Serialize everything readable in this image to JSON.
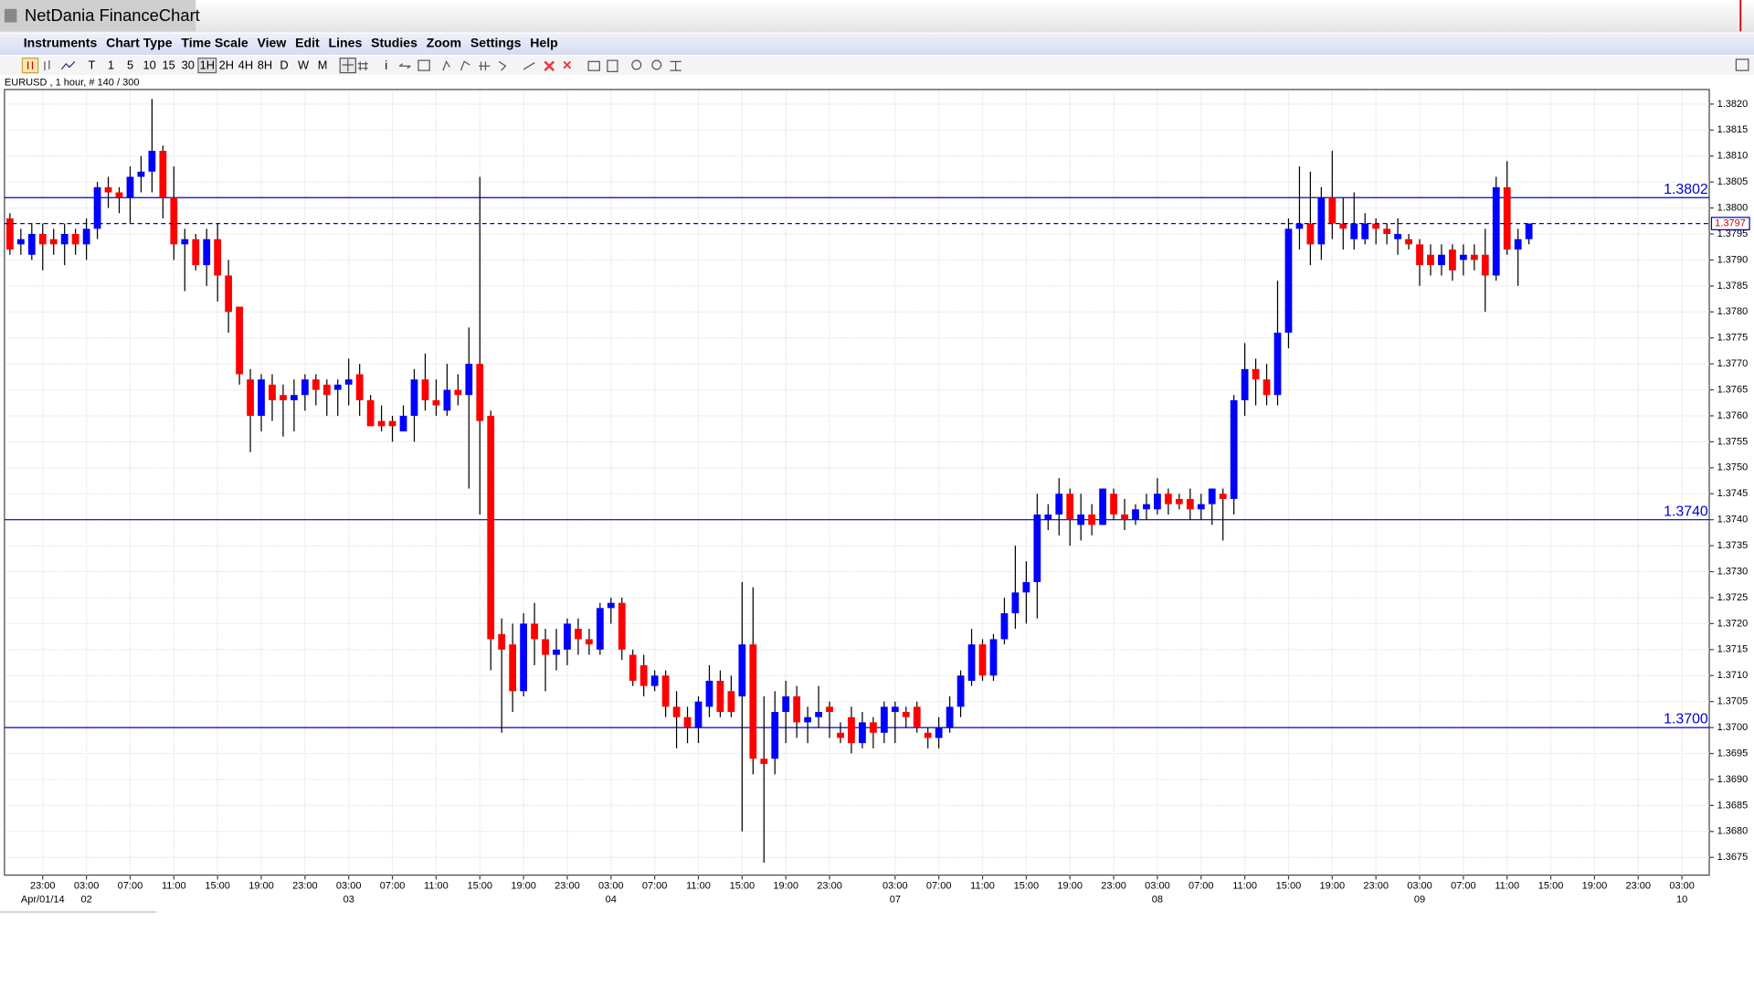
{
  "window": {
    "title": "NetDania FinanceChart"
  },
  "menu": [
    "Instruments",
    "Chart Type",
    "Time Scale",
    "View",
    "Edit",
    "Lines",
    "Studies",
    "Zoom",
    "Settings",
    "Help"
  ],
  "toolbar": [
    "T",
    "1",
    "5",
    "10",
    "15",
    "30",
    "1H",
    "2H",
    "4H",
    "8H",
    "D",
    "W",
    "M"
  ],
  "info": "EURUSD , 1 hour, # 140 / 300",
  "chart_data": {
    "type": "candlestick",
    "up_color": "#0000ff",
    "down_color": "#ff0000",
    "level_color": "#0000cc",
    "grid": true,
    "open": [
      1.3798,
      1.3793,
      1.3791,
      1.3795,
      1.3794,
      1.3793,
      1.3795,
      1.3793,
      1.3796,
      1.3804,
      1.3803,
      1.3802,
      1.3806,
      1.3807,
      1.3811,
      1.3802,
      1.3793,
      1.3794,
      1.3789,
      1.3794,
      1.3787,
      1.3781,
      1.3767,
      1.376,
      1.3766,
      1.3764,
      1.3763,
      1.3764,
      1.3767,
      1.3766,
      1.3765,
      1.3766,
      1.3768,
      1.3763,
      1.3759,
      1.3759,
      1.3757,
      1.376,
      1.3767,
      1.3763,
      1.3761,
      1.3765,
      1.3764,
      1.377,
      1.376,
      1.3718,
      1.3716,
      1.3707,
      1.372,
      1.3717,
      1.3714,
      1.3715,
      1.3719,
      1.3717,
      1.3715,
      1.3723,
      1.3724,
      1.3714,
      1.3712,
      1.3708,
      1.371,
      1.3704,
      1.3702,
      1.37,
      1.3704,
      1.3709,
      1.3707,
      1.3706,
      1.3716,
      1.3694,
      1.3694,
      1.3703,
      1.3706,
      1.3701,
      1.3702,
      1.3704,
      1.3699,
      1.3702,
      1.3697,
      1.3701,
      1.3699,
      1.3703,
      1.3703,
      1.3704,
      1.3699,
      1.3698,
      1.37,
      1.3704,
      1.3709,
      1.3716,
      1.371,
      1.3717,
      1.3722,
      1.3726,
      1.3728,
      1.374,
      1.3741,
      1.3745,
      1.3739,
      1.3741,
      1.3739,
      1.3745,
      1.3741,
      1.374,
      1.3742,
      1.3742,
      1.3745,
      1.3744,
      1.3744,
      1.3742,
      1.3743,
      1.3745,
      1.3744,
      1.3763,
      1.3769,
      1.3767,
      1.3764,
      1.3776,
      1.3796,
      1.3797,
      1.3793,
      1.3802,
      1.3797,
      1.3794,
      1.3794,
      1.3797,
      1.3796,
      1.3794,
      1.3794,
      1.3793,
      1.3791,
      1.3789,
      1.3792,
      1.379,
      1.3791,
      1.3791,
      1.3787,
      1.3804,
      1.3792,
      1.3794
    ],
    "high": [
      1.3799,
      1.3796,
      1.3797,
      1.3797,
      1.3796,
      1.3797,
      1.3796,
      1.3798,
      1.3805,
      1.3806,
      1.3804,
      1.3808,
      1.381,
      1.3821,
      1.3812,
      1.3808,
      1.3796,
      1.3795,
      1.3796,
      1.3797,
      1.379,
      1.3781,
      1.3769,
      1.3768,
      1.3768,
      1.3766,
      1.3767,
      1.3768,
      1.3768,
      1.3767,
      1.3767,
      1.3771,
      1.377,
      1.3764,
      1.3762,
      1.376,
      1.3762,
      1.3769,
      1.3772,
      1.3767,
      1.377,
      1.3768,
      1.3777,
      1.3806,
      1.3761,
      1.3721,
      1.372,
      1.3722,
      1.3724,
      1.3719,
      1.3719,
      1.3721,
      1.3721,
      1.3719,
      1.3724,
      1.3725,
      1.3725,
      1.3715,
      1.3714,
      1.3711,
      1.3711,
      1.3707,
      1.3704,
      1.3706,
      1.3712,
      1.3711,
      1.371,
      1.3728,
      1.3727,
      1.3706,
      1.3707,
      1.3709,
      1.3708,
      1.3704,
      1.3708,
      1.3705,
      1.3701,
      1.3704,
      1.3703,
      1.3702,
      1.3705,
      1.3705,
      1.3704,
      1.3705,
      1.37,
      1.3702,
      1.3706,
      1.3711,
      1.3719,
      1.3717,
      1.3718,
      1.3725,
      1.3735,
      1.3732,
      1.3745,
      1.3743,
      1.3748,
      1.3746,
      1.3745,
      1.3743,
      1.3746,
      1.3746,
      1.3744,
      1.3743,
      1.3745,
      1.3748,
      1.3746,
      1.3745,
      1.3746,
      1.3745,
      1.3746,
      1.3746,
      1.3764,
      1.3774,
      1.3771,
      1.377,
      1.3786,
      1.3798,
      1.3808,
      1.3807,
      1.3804,
      1.3811,
      1.3802,
      1.3803,
      1.3799,
      1.3798,
      1.3797,
      1.3798,
      1.3795,
      1.3794,
      1.3793,
      1.3793,
      1.3793,
      1.3793,
      1.3793,
      1.3796,
      1.3806,
      1.3809,
      1.3796,
      1.3797
    ],
    "low": [
      1.3791,
      1.3791,
      1.379,
      1.3788,
      1.3791,
      1.3789,
      1.3791,
      1.379,
      1.3794,
      1.38,
      1.3799,
      1.3797,
      1.3803,
      1.3803,
      1.3798,
      1.379,
      1.3784,
      1.3788,
      1.3785,
      1.3782,
      1.3776,
      1.3766,
      1.3753,
      1.3757,
      1.3759,
      1.3756,
      1.3757,
      1.3761,
      1.3762,
      1.376,
      1.376,
      1.3762,
      1.376,
      1.3758,
      1.3757,
      1.3755,
      1.3757,
      1.3755,
      1.3761,
      1.376,
      1.376,
      1.3762,
      1.3746,
      1.3741,
      1.3711,
      1.3699,
      1.3703,
      1.3706,
      1.3712,
      1.3707,
      1.3711,
      1.3712,
      1.3714,
      1.3714,
      1.3714,
      1.372,
      1.3713,
      1.3708,
      1.3706,
      1.3707,
      1.3702,
      1.3696,
      1.3697,
      1.3697,
      1.3702,
      1.3702,
      1.3702,
      1.368,
      1.3691,
      1.3674,
      1.3691,
      1.3697,
      1.3698,
      1.3697,
      1.37,
      1.3698,
      1.3697,
      1.3695,
      1.3696,
      1.3696,
      1.3697,
      1.3697,
      1.37,
      1.3699,
      1.3696,
      1.3696,
      1.3699,
      1.3702,
      1.3708,
      1.3709,
      1.3709,
      1.3716,
      1.3719,
      1.372,
      1.3721,
      1.3738,
      1.3737,
      1.3735,
      1.3736,
      1.3737,
      1.3739,
      1.374,
      1.3738,
      1.3739,
      1.374,
      1.3741,
      1.3741,
      1.3742,
      1.374,
      1.374,
      1.3739,
      1.3736,
      1.3741,
      1.376,
      1.3762,
      1.3762,
      1.3762,
      1.3773,
      1.3792,
      1.3789,
      1.379,
      1.3794,
      1.3792,
      1.3792,
      1.3793,
      1.3793,
      1.3793,
      1.3791,
      1.3792,
      1.3785,
      1.3787,
      1.3787,
      1.3786,
      1.3787,
      1.3788,
      1.378,
      1.3786,
      1.3791,
      1.3785,
      1.3793
    ],
    "close": [
      1.3792,
      1.3794,
      1.3795,
      1.3793,
      1.3793,
      1.3795,
      1.3793,
      1.3796,
      1.3804,
      1.3803,
      1.3802,
      1.3806,
      1.3807,
      1.3811,
      1.3802,
      1.3793,
      1.3794,
      1.3789,
      1.3794,
      1.3787,
      1.378,
      1.3768,
      1.376,
      1.3767,
      1.3763,
      1.3763,
      1.3764,
      1.3767,
      1.3765,
      1.3764,
      1.3766,
      1.3767,
      1.3763,
      1.3758,
      1.3758,
      1.3758,
      1.376,
      1.3767,
      1.3763,
      1.3762,
      1.3765,
      1.3764,
      1.377,
      1.3759,
      1.3717,
      1.3715,
      1.3707,
      1.372,
      1.3717,
      1.3714,
      1.3715,
      1.372,
      1.3717,
      1.3716,
      1.3723,
      1.3724,
      1.3715,
      1.3709,
      1.3708,
      1.371,
      1.3704,
      1.3702,
      1.37,
      1.3705,
      1.3709,
      1.3703,
      1.3703,
      1.3716,
      1.3694,
      1.3693,
      1.3703,
      1.3706,
      1.3701,
      1.3702,
      1.3703,
      1.3703,
      1.3698,
      1.3697,
      1.3701,
      1.3699,
      1.3704,
      1.3704,
      1.3702,
      1.37,
      1.3698,
      1.37,
      1.3704,
      1.371,
      1.3716,
      1.371,
      1.3717,
      1.3722,
      1.3726,
      1.3728,
      1.3741,
      1.3741,
      1.3745,
      1.374,
      1.3741,
      1.3739,
      1.3746,
      1.3741,
      1.374,
      1.3742,
      1.3743,
      1.3745,
      1.3743,
      1.3743,
      1.3742,
      1.3743,
      1.3746,
      1.3744,
      1.3763,
      1.3769,
      1.3767,
      1.3764,
      1.3776,
      1.3796,
      1.3797,
      1.3793,
      1.3802,
      1.3797,
      1.3796,
      1.3797,
      1.3797,
      1.3796,
      1.3795,
      1.3795,
      1.3793,
      1.3789,
      1.3789,
      1.3791,
      1.3788,
      1.3791,
      1.379,
      1.3787,
      1.3804,
      1.3792,
      1.3794,
      1.3797
    ],
    "xlim": [
      -0.5,
      155.5
    ],
    "xticks": [
      {
        "value": 3,
        "label": "23:00"
      },
      {
        "value": 7,
        "label": "03:00"
      },
      {
        "value": 11,
        "label": "07:00"
      },
      {
        "value": 15,
        "label": "11:00"
      },
      {
        "value": 19,
        "label": "15:00"
      },
      {
        "value": 23,
        "label": "19:00"
      },
      {
        "value": 27,
        "label": "23:00"
      },
      {
        "value": 31,
        "label": "03:00"
      },
      {
        "value": 35,
        "label": "07:00"
      },
      {
        "value": 39,
        "label": "11:00"
      },
      {
        "value": 43,
        "label": "15:00"
      },
      {
        "value": 47,
        "label": "19:00"
      },
      {
        "value": 51,
        "label": "23:00"
      },
      {
        "value": 55,
        "label": "03:00"
      },
      {
        "value": 59,
        "label": "07:00"
      },
      {
        "value": 63,
        "label": "11:00"
      },
      {
        "value": 67,
        "label": "15:00"
      },
      {
        "value": 71,
        "label": "19:00"
      },
      {
        "value": 75,
        "label": "23:00"
      },
      {
        "value": 81,
        "label": "03:00"
      },
      {
        "value": 85,
        "label": "07:00"
      },
      {
        "value": 89,
        "label": "11:00"
      },
      {
        "value": 93,
        "label": "15:00"
      },
      {
        "value": 97,
        "label": "19:00"
      },
      {
        "value": 101,
        "label": "23:00"
      },
      {
        "value": 105,
        "label": "03:00"
      },
      {
        "value": 109,
        "label": "07:00"
      },
      {
        "value": 113,
        "label": "11:00"
      },
      {
        "value": 117,
        "label": "15:00"
      },
      {
        "value": 121,
        "label": "19:00"
      },
      {
        "value": 125,
        "label": "23:00"
      },
      {
        "value": 129,
        "label": "03:00"
      },
      {
        "value": 133,
        "label": "07:00"
      },
      {
        "value": 137,
        "label": "11:00"
      },
      {
        "value": 141,
        "label": "15:00"
      },
      {
        "value": 145,
        "label": "19:00"
      },
      {
        "value": 149,
        "label": "23:00"
      },
      {
        "value": 153,
        "label": "03:00"
      }
    ],
    "xdates": [
      {
        "value": 3,
        "label": "Apr/01/14"
      },
      {
        "value": 7,
        "label": "02"
      },
      {
        "value": 31,
        "label": "03"
      },
      {
        "value": 55,
        "label": "04"
      },
      {
        "value": 81,
        "label": "07"
      },
      {
        "value": 105,
        "label": "08"
      },
      {
        "value": 129,
        "label": "09"
      },
      {
        "value": 153,
        "label": "10"
      }
    ],
    "ylim": [
      1.36716,
      1.38228
    ],
    "yticks": [
      1.3675,
      {
        "value": 1.368,
        "label": "1.3680"
      },
      1.3685,
      {
        "value": 1.369,
        "label": "1.3690"
      },
      1.3695,
      {
        "value": 1.37,
        "label": "1.3700"
      },
      1.3705,
      {
        "value": 1.371,
        "label": "1.3710"
      },
      1.3715,
      {
        "value": 1.372,
        "label": "1.3720"
      },
      1.3725,
      {
        "value": 1.373,
        "label": "1.3730"
      },
      1.3735,
      {
        "value": 1.374,
        "label": "1.3740"
      },
      1.3745,
      {
        "value": 1.375,
        "label": "1.3750"
      },
      1.3755,
      {
        "value": 1.376,
        "label": "1.3760"
      },
      1.3765,
      {
        "value": 1.377,
        "label": "1.3770"
      },
      1.3775,
      {
        "value": 1.378,
        "label": "1.3780"
      },
      1.3785,
      {
        "value": 1.379,
        "label": "1.3790"
      },
      1.3795,
      {
        "value": 1.38,
        "label": "1.3800"
      },
      1.3805,
      {
        "value": 1.381,
        "label": "1.3810"
      },
      1.3815,
      {
        "value": 1.382,
        "label": "1.3820"
      }
    ],
    "levels": [
      1.3802,
      {
        "value": 1.374,
        "label": "1.3740"
      },
      {
        "value": 1.37,
        "label": "1.3700"
      }
    ],
    "last": 1.3797
  }
}
